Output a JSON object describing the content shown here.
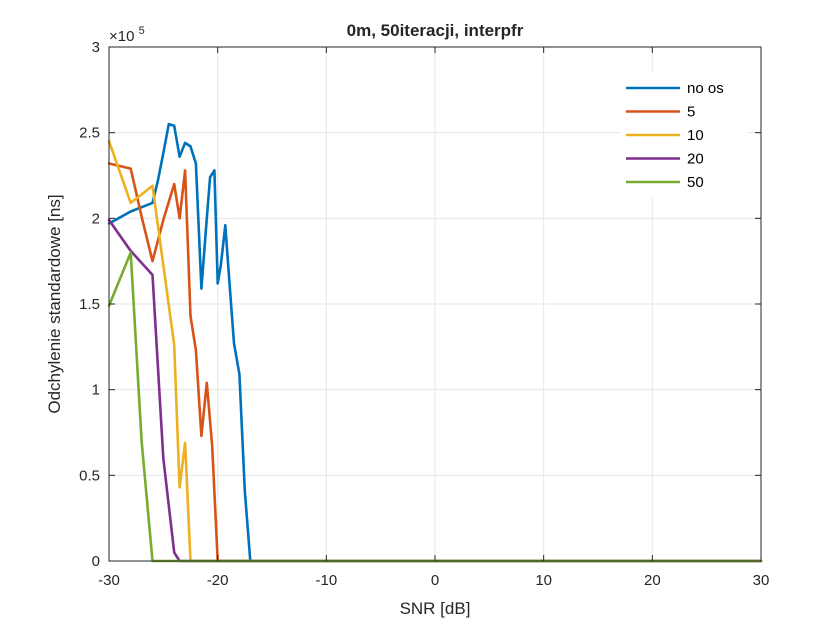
{
  "chart_data": {
    "type": "line",
    "title": "0m, 50iteracji, interpfr",
    "xlabel": "SNR [dB]",
    "ylabel": "Odchylenie standardowe [ns]",
    "xlim": [
      -30,
      30
    ],
    "ylim": [
      0,
      3
    ],
    "x_ticks": [
      -30,
      -20,
      -10,
      0,
      10,
      20,
      30
    ],
    "x_tick_labels": [
      "-30",
      "-20",
      "-10",
      "0",
      "10",
      "20",
      "30"
    ],
    "y_ticks": [
      0,
      0.5,
      1,
      1.5,
      2,
      2.5,
      3
    ],
    "y_tick_labels": [
      "0",
      "0.5",
      "1",
      "1.5",
      "2",
      "2.5",
      "3"
    ],
    "y_exponent_base": "×10",
    "y_exponent_power": "5",
    "grid": true,
    "legend_position": "top-right",
    "series": [
      {
        "name": "no os",
        "color": "#0072BD",
        "x": [
          -30,
          -28,
          -26,
          -25.5,
          -25,
          -24.5,
          -24,
          -23.5,
          -23,
          -22.5,
          -22,
          -21.5,
          -21,
          -20.7,
          -20.3,
          -20,
          -19.7,
          -19.3,
          -19,
          -18.5,
          -18,
          -17.5,
          -17,
          -16.5,
          -16,
          -15.5,
          30
        ],
        "y": [
          1.97,
          2.04,
          2.09,
          2.22,
          2.38,
          2.55,
          2.54,
          2.36,
          2.44,
          2.42,
          2.32,
          1.59,
          2.0,
          2.24,
          2.28,
          1.62,
          1.73,
          1.96,
          1.7,
          1.27,
          1.09,
          0.41,
          0.0,
          0.0,
          0.0,
          0.0,
          0.0
        ]
      },
      {
        "name": "5",
        "color": "#D95319",
        "x": [
          -30,
          -28,
          -27,
          -26,
          -25,
          -24,
          -23.5,
          -23,
          -22.5,
          -22,
          -21.5,
          -21,
          -20.5,
          -20,
          -19.5,
          30
        ],
        "y": [
          2.32,
          2.29,
          2.01,
          1.75,
          1.99,
          2.2,
          2.0,
          2.28,
          1.43,
          1.23,
          0.73,
          1.04,
          0.67,
          0.0,
          0.0,
          0.0
        ]
      },
      {
        "name": "10",
        "color": "#EDB120",
        "x": [
          -30,
          -28,
          -26,
          -24,
          -23.5,
          -23,
          -22.5,
          -22,
          30
        ],
        "y": [
          2.45,
          2.09,
          2.19,
          1.26,
          0.43,
          0.69,
          0.0,
          0.0,
          0.0
        ]
      },
      {
        "name": "20",
        "color": "#7E2F8E",
        "x": [
          -30,
          -28,
          -26,
          -25,
          -24,
          -23.5,
          30
        ],
        "y": [
          1.99,
          1.81,
          1.67,
          0.6,
          0.05,
          0.0,
          0.0
        ]
      },
      {
        "name": "50",
        "color": "#77AC30",
        "x": [
          -30,
          -28,
          -27,
          -26,
          -25.8,
          30
        ],
        "y": [
          1.49,
          1.8,
          0.7,
          0.0,
          0.0,
          0.0
        ]
      }
    ]
  }
}
